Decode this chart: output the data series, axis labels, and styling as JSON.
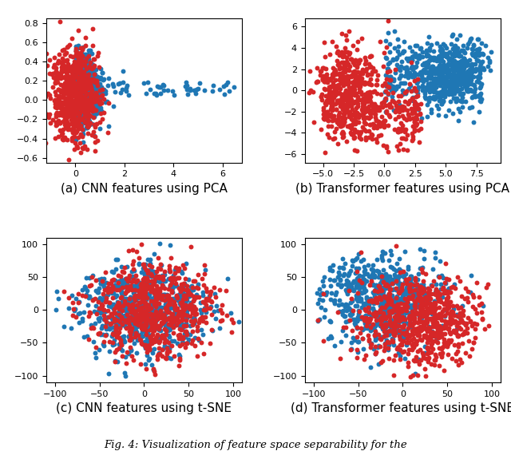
{
  "seed": 42,
  "n_blue": 700,
  "n_red": 700,
  "dot_size": 18,
  "blue_color": "#1f77b4",
  "red_color": "#d62728",
  "alpha": 1.0,
  "captions": [
    "(a) CNN features using PCA",
    "(b) Transformer features using PCA",
    "(c) CNN features using t-SNE",
    "(d) Transformer features using t-SNE"
  ],
  "fig_caption": "Fig. 4: Visualization of feature space separability for the",
  "caption_fontsize": 11,
  "tick_fontsize": 8,
  "background_color": "#ffffff"
}
